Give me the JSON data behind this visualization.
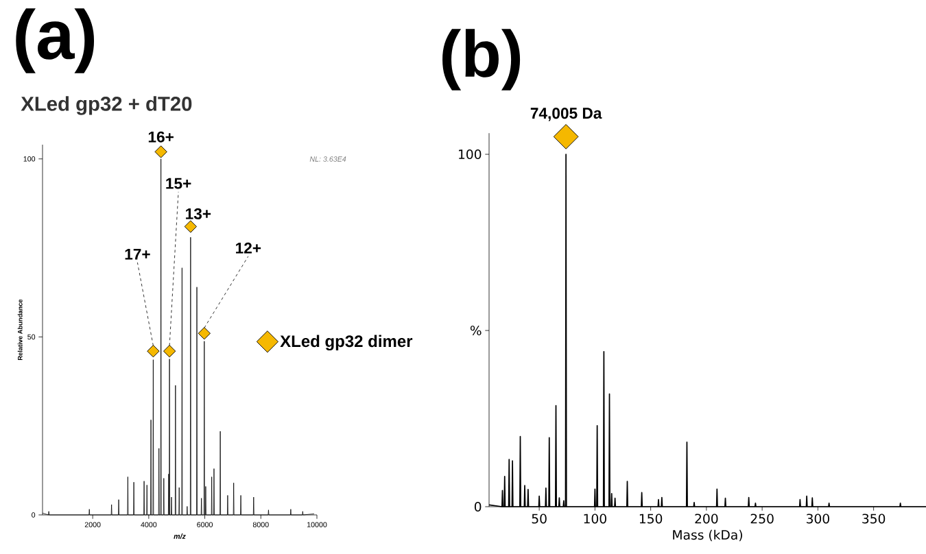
{
  "chart_data": [
    {
      "type": "line",
      "title": "(a)",
      "subtitle": "XLed gp32 + dT20",
      "xlabel": "m/z",
      "ylabel": "Relative Abundance",
      "xlim": [
        210,
        10000
      ],
      "ylim": [
        0,
        104
      ],
      "xticks": [
        2000,
        4000,
        6000,
        8000,
        10000
      ],
      "yticks": [
        0,
        50,
        100
      ],
      "legend": "right",
      "series": [
        {
          "color": "#000000",
          "x": [
            210,
            422,
            434,
            446,
            1868,
            1880,
            1892,
            2661,
            2673,
            2685,
            2916,
            2928,
            2940,
            3242,
            3254,
            3266,
            3456,
            3468,
            3480,
            3822,
            3834,
            3846,
            3924,
            3936,
            3948,
            4066,
            4078,
            4090,
            4148,
            4160,
            4172,
            4351,
            4363,
            4375,
            4423,
            4435,
            4447,
            4525,
            4537,
            4549,
            4698,
            4710,
            4722,
            4728,
            4740,
            4752,
            4799,
            4811,
            4823,
            4942,
            4954,
            4966,
            5074,
            5086,
            5098,
            5176,
            5188,
            5200,
            5359,
            5371,
            5383,
            5481,
            5493,
            5505,
            5705,
            5717,
            5729,
            5868,
            5880,
            5892,
            5970,
            5982,
            5994,
            6021,
            6033,
            6045,
            6235,
            6247,
            6259,
            6316,
            6328,
            6340,
            6540,
            6552,
            6564,
            6804,
            6816,
            6828,
            7018,
            7030,
            7042,
            7273,
            7285,
            7297,
            7731,
            7743,
            7755,
            8261,
            8273,
            8285,
            9055,
            9067,
            9079,
            9482,
            9494,
            9506,
            9900
          ],
          "values": [
            0.5,
            0,
            1,
            0,
            0,
            1.6,
            0,
            0,
            2.9,
            0,
            0,
            4.3,
            0,
            0,
            10.7,
            0,
            0,
            9.2,
            0,
            0,
            9.5,
            0,
            0,
            8.4,
            0,
            0,
            26.7,
            0,
            0,
            43.6,
            0,
            0,
            18.7,
            0,
            0,
            100,
            0,
            0,
            10.3,
            0,
            0,
            11.5,
            0,
            0,
            43.8,
            0,
            0,
            5,
            0,
            0,
            36.4,
            0,
            0,
            7.7,
            0,
            0,
            69.4,
            0,
            0,
            2.4,
            0,
            0,
            78,
            0,
            0,
            64,
            0,
            0,
            4.7,
            0,
            0,
            48.8,
            0,
            0,
            8,
            0,
            0,
            10.7,
            0,
            0,
            13,
            0,
            0,
            23.5,
            0,
            0,
            5.5,
            0,
            0,
            9,
            0,
            0,
            5.5,
            0,
            0,
            5,
            0,
            0,
            1.4,
            0,
            0,
            1.6,
            0,
            0,
            1,
            0,
            0.3
          ]
        },
        {
          "type": "scatter",
          "name": "XLed gp32 dimer",
          "color": "#f5b800",
          "marker": "diamond",
          "x": [
            4160,
            4435,
            4740,
            5493,
            5982
          ],
          "values": [
            46,
            102,
            46,
            81,
            51
          ]
        }
      ],
      "annotations": [
        {
          "text": "17+",
          "x": 4160,
          "y": 46
        },
        {
          "text": "16+",
          "x": 4435,
          "y": 102
        },
        {
          "text": "15+",
          "x": 4740,
          "y": 46
        },
        {
          "text": "13+",
          "x": 5493,
          "y": 81
        },
        {
          "text": "12+",
          "x": 5982,
          "y": 51
        },
        "NL: 3.63E4"
      ]
    },
    {
      "type": "line",
      "title": "(b)",
      "xlabel": "Mass (kDa)",
      "xlim": [
        5,
        397
      ],
      "ylim": [
        0,
        106
      ],
      "xticks": [
        50,
        100,
        150,
        200,
        250,
        300,
        350
      ],
      "yticks": [
        0,
        {
          "value": 50,
          "label": "%"
        },
        100
      ],
      "series": [
        {
          "color": "#000000",
          "x": [
            5,
            16.6,
            17,
            17.4,
            18.6,
            19,
            19.4,
            22.6,
            23,
            23.4,
            25.6,
            26,
            26.4,
            32.6,
            33,
            33.4,
            36.6,
            37,
            37.4,
            39.6,
            40,
            40.4,
            49.6,
            50,
            50.4,
            55.6,
            56,
            56.4,
            58.6,
            59,
            59.4,
            64.6,
            65,
            65.4,
            67.6,
            68,
            68.4,
            71.6,
            72,
            72.4,
            73.6,
            74,
            74.4,
            99.6,
            100,
            100.4,
            101.6,
            102,
            102.4,
            107.6,
            108,
            108.4,
            112.6,
            113,
            113.4,
            114.6,
            115,
            115.4,
            117.6,
            118,
            118.4,
            128.6,
            129,
            129.4,
            141.6,
            142,
            142.4,
            156.6,
            157,
            157.4,
            159.6,
            160,
            160.4,
            182.1,
            182.5,
            182.9,
            188.6,
            189,
            189.4,
            209.1,
            209.5,
            209.9,
            216.6,
            217,
            217.4,
            237.6,
            238,
            238.4,
            243.6,
            244,
            244.4,
            283.6,
            284,
            284.4,
            289.6,
            290,
            290.4,
            294.6,
            295,
            295.4,
            309.6,
            310,
            310.4,
            373.6,
            374,
            374.4,
            397
          ],
          "values": [
            0.5,
            0,
            4.6,
            0,
            0,
            8.6,
            0,
            0,
            13.4,
            0,
            0,
            13,
            0,
            0,
            19.9,
            0,
            0,
            6,
            0,
            0,
            4.9,
            0,
            0,
            3,
            0,
            0,
            5.3,
            0,
            0,
            19.6,
            0,
            0,
            28.7,
            0,
            0,
            2.5,
            0,
            0,
            1.7,
            0,
            0,
            100,
            0,
            0,
            5,
            0,
            0,
            23,
            0,
            0,
            44,
            0,
            0,
            32,
            0,
            0,
            3.7,
            0,
            0,
            2.4,
            0,
            0,
            7.2,
            0,
            0,
            4,
            0,
            0,
            2,
            0,
            0,
            2.6,
            0,
            0,
            18.3,
            0,
            0,
            1.2,
            0,
            0,
            5,
            0,
            0,
            2.4,
            0,
            0,
            2.6,
            0,
            0,
            1,
            0,
            0,
            2,
            0,
            0,
            3,
            0,
            0,
            2.5,
            0,
            0,
            1,
            0,
            0,
            1,
            0,
            0
          ]
        },
        {
          "type": "scatter",
          "color": "#f5b800",
          "marker": "diamond",
          "x": [
            74
          ],
          "values": [
            105
          ]
        }
      ],
      "annotations": [
        {
          "text": "74,005 Da",
          "x": 74,
          "y": 100
        }
      ]
    }
  ]
}
